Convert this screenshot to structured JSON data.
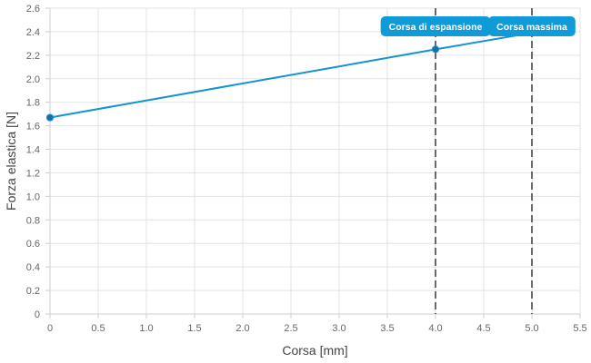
{
  "chart_data": {
    "type": "line",
    "xlabel": "Corsa [mm]",
    "ylabel": "Forza elastica [N]",
    "xlim": [
      0,
      5.5
    ],
    "ylim": [
      0,
      2.6
    ],
    "x_ticks": [
      "0",
      "0.5",
      "1.0",
      "1.5",
      "2.0",
      "2.5",
      "3.0",
      "3.5",
      "4.0",
      "4.5",
      "5.0",
      "5.5"
    ],
    "y_ticks": [
      "0",
      "0.2",
      "0.4",
      "0.6",
      "0.8",
      "1.0",
      "1.2",
      "1.4",
      "1.6",
      "1.8",
      "2.0",
      "2.2",
      "2.4",
      "2.6"
    ],
    "grid": true,
    "series": [
      {
        "x": [
          0,
          4.0,
          5.0
        ],
        "y": [
          1.67,
          2.25,
          2.39
        ],
        "markers_at": [
          0,
          4.0
        ],
        "color": "#1493d2"
      }
    ],
    "annotations": [
      {
        "label": "Corsa di espansione",
        "x": 4.0,
        "line_color": "#444444",
        "badge_color": "#0f9ad8"
      },
      {
        "label": "Corsa massima",
        "x": 5.0,
        "line_color": "#444444",
        "badge_color": "#0f9ad8"
      }
    ]
  }
}
